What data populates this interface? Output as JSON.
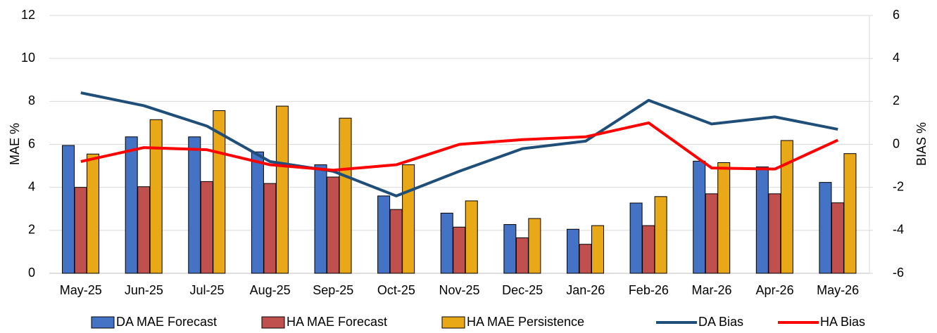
{
  "chart_data": {
    "type": "bar",
    "y_label": "MAE %",
    "y2_label": "BIAS %",
    "categories": [
      "May-25",
      "Jun-25",
      "Jul-25",
      "Aug-25",
      "Sep-25",
      "Oct-25",
      "Nov-25",
      "Dec-25",
      "Jan-26",
      "Feb-26",
      "Mar-26",
      "Apr-26",
      "May-26"
    ],
    "series": [
      {
        "name": "DA MAE Forecast",
        "type": "bar",
        "color": "#4472c4",
        "values": [
          5.95,
          6.35,
          6.35,
          5.65,
          5.05,
          3.6,
          2.8,
          2.27,
          2.05,
          3.27,
          5.22,
          4.95,
          4.23
        ]
      },
      {
        "name": "HA MAE Forecast",
        "type": "bar",
        "color": "#c0504d",
        "values": [
          4.0,
          4.03,
          4.27,
          4.18,
          4.48,
          2.97,
          2.15,
          1.65,
          1.35,
          2.22,
          3.7,
          3.7,
          3.28
        ]
      },
      {
        "name": "HA MAE Persistence",
        "type": "bar",
        "color": "#e8a817",
        "values": [
          5.55,
          7.15,
          7.57,
          7.78,
          7.22,
          5.05,
          3.37,
          2.55,
          2.22,
          3.57,
          5.15,
          6.18,
          5.57
        ]
      },
      {
        "name": "DA Bias",
        "type": "line",
        "axis": "y2",
        "color": "#1f4e79",
        "values": [
          2.4,
          1.8,
          0.85,
          -0.8,
          -1.25,
          -2.4,
          -1.25,
          -0.2,
          0.15,
          2.05,
          0.95,
          1.28,
          0.7
        ]
      },
      {
        "name": "HA Bias",
        "type": "line",
        "axis": "y2",
        "color": "#ff0000",
        "values": [
          -0.8,
          -0.15,
          -0.25,
          -0.95,
          -1.2,
          -0.95,
          0,
          0.22,
          0.35,
          1.0,
          -1.1,
          -1.15,
          0.2
        ]
      }
    ],
    "ylim": [
      0,
      12
    ],
    "yticks": [
      0,
      2,
      4,
      6,
      8,
      10,
      12
    ],
    "y2lim": [
      -6,
      6
    ],
    "y2ticks": [
      -6,
      -4,
      -2,
      0,
      2,
      4,
      6
    ],
    "grid": true,
    "legend": "bottom"
  }
}
